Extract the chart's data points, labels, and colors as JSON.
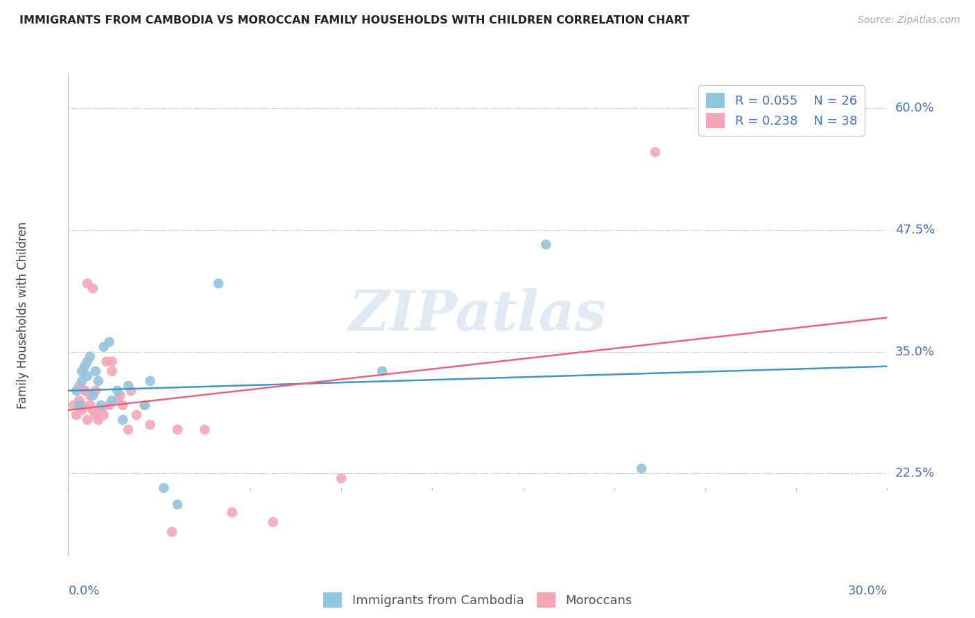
{
  "title": "IMMIGRANTS FROM CAMBODIA VS MOROCCAN FAMILY HOUSEHOLDS WITH CHILDREN CORRELATION CHART",
  "source": "Source: ZipAtlas.com",
  "ylabel": "Family Households with Children",
  "yticks": [
    0.225,
    0.35,
    0.475,
    0.6
  ],
  "ytick_labels": [
    "22.5%",
    "35.0%",
    "47.5%",
    "60.0%"
  ],
  "xlim": [
    0.0,
    0.3
  ],
  "ylim": [
    0.14,
    0.635
  ],
  "legend_r1": "R = 0.055",
  "legend_n1": "N = 26",
  "legend_r2": "R = 0.238",
  "legend_n2": "N = 38",
  "color_blue": "#92c5de",
  "color_pink": "#f4a6b8",
  "color_blue_line": "#4393c3",
  "color_pink_line": "#e8637e",
  "color_axis_label": "#4472c4",
  "watermark": "ZIPatlas",
  "cambodia_x": [
    0.003,
    0.004,
    0.005,
    0.005,
    0.006,
    0.007,
    0.007,
    0.008,
    0.009,
    0.01,
    0.011,
    0.012,
    0.013,
    0.015,
    0.016,
    0.018,
    0.02,
    0.022,
    0.028,
    0.03,
    0.035,
    0.04,
    0.055,
    0.115,
    0.175,
    0.21
  ],
  "cambodia_y": [
    0.31,
    0.295,
    0.32,
    0.33,
    0.335,
    0.325,
    0.34,
    0.345,
    0.305,
    0.33,
    0.32,
    0.295,
    0.355,
    0.36,
    0.3,
    0.31,
    0.28,
    0.315,
    0.295,
    0.32,
    0.21,
    0.193,
    0.42,
    0.33,
    0.46,
    0.23
  ],
  "morocco_x": [
    0.002,
    0.003,
    0.004,
    0.004,
    0.005,
    0.005,
    0.006,
    0.006,
    0.007,
    0.007,
    0.008,
    0.008,
    0.009,
    0.009,
    0.01,
    0.01,
    0.011,
    0.012,
    0.013,
    0.014,
    0.015,
    0.016,
    0.016,
    0.018,
    0.019,
    0.02,
    0.022,
    0.023,
    0.025,
    0.028,
    0.03,
    0.038,
    0.04,
    0.05,
    0.06,
    0.075,
    0.1,
    0.215
  ],
  "morocco_y": [
    0.295,
    0.285,
    0.3,
    0.315,
    0.29,
    0.295,
    0.31,
    0.31,
    0.28,
    0.42,
    0.295,
    0.305,
    0.29,
    0.415,
    0.285,
    0.31,
    0.28,
    0.29,
    0.285,
    0.34,
    0.295,
    0.33,
    0.34,
    0.3,
    0.305,
    0.295,
    0.27,
    0.31,
    0.285,
    0.295,
    0.275,
    0.165,
    0.27,
    0.27,
    0.185,
    0.175,
    0.22,
    0.555
  ],
  "blue_line_x": [
    0.0,
    0.3
  ],
  "blue_line_y": [
    0.31,
    0.335
  ],
  "pink_line_x": [
    0.0,
    0.3
  ],
  "pink_line_y": [
    0.29,
    0.385
  ]
}
